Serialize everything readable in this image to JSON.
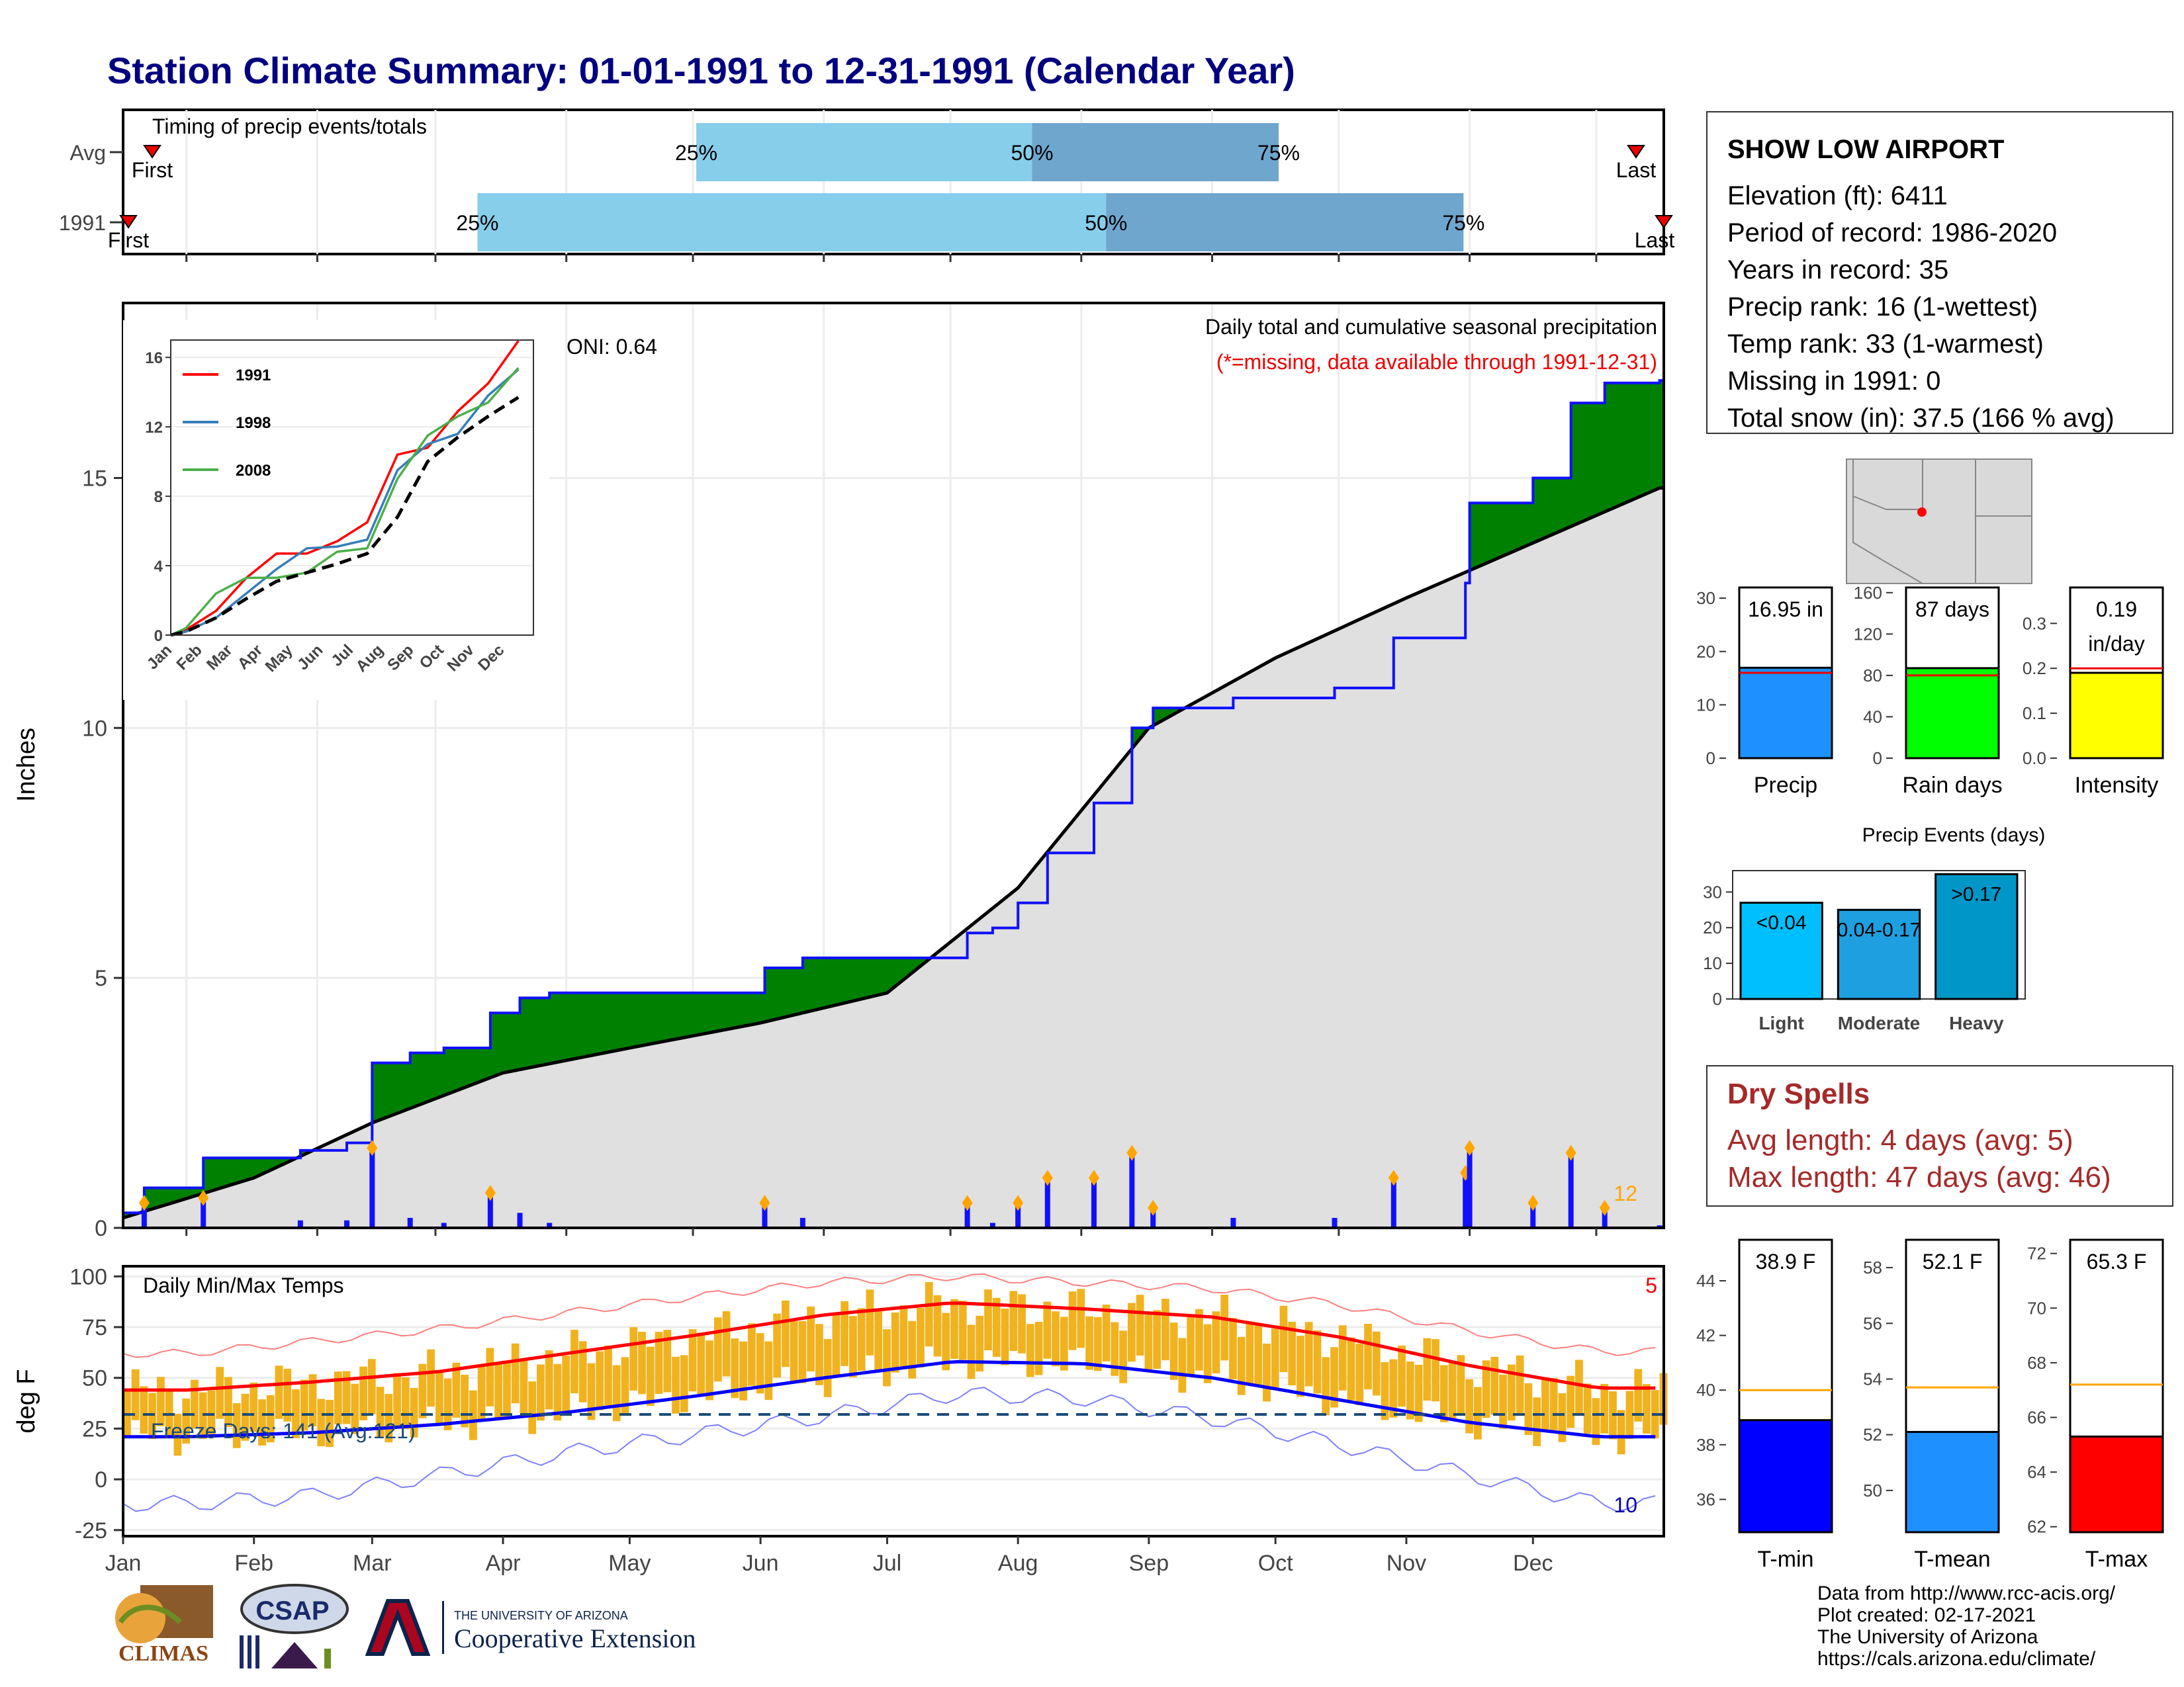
{
  "title": "Station Climate Summary: 01-01-1991 to 12-31-1991 (Calendar Year)",
  "timing": {
    "label": "Timing of precip events/totals",
    "rows": [
      {
        "name": "Avg",
        "first": 0.0,
        "p25": 0.372,
        "p50": 0.59,
        "p75": 0.75,
        "last": 0.985
      },
      {
        "name": "1991",
        "first": 0.0,
        "p25": 0.23,
        "p50": 0.638,
        "p75": 0.87,
        "last": 1.0
      }
    ],
    "first_label": "First",
    "last_label": "Last",
    "pct_labels": [
      "25%",
      "50%",
      "75%"
    ],
    "colors": {
      "q1": "#87ceeb",
      "q2": "#6ea6cd"
    }
  },
  "precip_panel": {
    "ylabel": "Inches",
    "ylim": [
      0,
      18.5
    ],
    "yticks": [
      0,
      5,
      10,
      15
    ],
    "oni_label": "ONI: 0.64",
    "caption": "Daily total and cumulative seasonal precipitation",
    "missing_note": "(*=missing, data available through 1991-12-31)",
    "corner_count": "12",
    "colors": {
      "above": "#008000",
      "below": "#8b5a00",
      "normal_fill": "#e0e0e0",
      "cum_line": "#1010ff",
      "bars": "#1010ff",
      "marker": "#ffa500"
    }
  },
  "chart_data": [
    {
      "type": "area",
      "title": "Daily total and cumulative seasonal precipitation",
      "ylabel": "Inches",
      "ylim": [
        0,
        18.5
      ],
      "series": [
        {
          "name": "1991",
          "x": [
            "Jan 1",
            "Jan 6",
            "Jan 20",
            "Feb 1",
            "Feb 12",
            "Feb 23",
            "Mar 1",
            "Mar 10",
            "Mar 18",
            "Mar 29",
            "Apr 5",
            "Apr 12",
            "May 1",
            "Jun 1",
            "Jun 2",
            "Jun 11",
            "Jul 1",
            "Jul 20",
            "Jul 26",
            "Aug 1",
            "Aug 8",
            "Aug 19",
            "Aug 28",
            "Sep 2",
            "Sep 21",
            "Oct 1",
            "Oct 15",
            "Oct 29",
            "Nov 15",
            "Nov 16",
            "Nov 28",
            "Dec 1",
            "Dec 10",
            "Dec 18",
            "Dec 31"
          ],
          "values": [
            0.3,
            0.8,
            1.4,
            1.4,
            1.55,
            1.7,
            3.3,
            3.5,
            3.6,
            4.3,
            4.6,
            4.7,
            4.7,
            4.7,
            5.2,
            5.4,
            5.4,
            5.9,
            6.0,
            6.5,
            7.5,
            8.5,
            10.0,
            10.4,
            10.6,
            10.6,
            10.8,
            11.8,
            12.9,
            14.5,
            14.5,
            15.0,
            16.5,
            16.9,
            16.95
          ]
        },
        {
          "name": "Avg",
          "x": [
            "Jan 1",
            "Feb 1",
            "Mar 1",
            "Apr 1",
            "May 1",
            "Jun 1",
            "Jul 1",
            "Aug 1",
            "Sep 1",
            "Oct 1",
            "Nov 1",
            "Dec 1",
            "Dec 31"
          ],
          "values": [
            0.2,
            1.0,
            2.1,
            3.1,
            3.6,
            4.1,
            4.7,
            6.8,
            10.0,
            11.4,
            12.6,
            13.7,
            14.8
          ]
        }
      ],
      "daily_bars_note": "Daily precipitation bars along the bottom of the panel"
    },
    {
      "type": "line",
      "title": "",
      "xlabel": "",
      "ylabel": "",
      "categories": [
        "Jan",
        "Feb",
        "Mar",
        "Apr",
        "May",
        "Jun",
        "Jul",
        "Aug",
        "Sep",
        "Oct",
        "Nov",
        "Dec"
      ],
      "ylim": [
        0,
        17
      ],
      "yticks": [
        0,
        4,
        8,
        12,
        16
      ],
      "series": [
        {
          "name": "1991",
          "color": "#ff0000",
          "values": [
            0.3,
            1.4,
            3.3,
            4.7,
            4.7,
            5.4,
            6.5,
            10.4,
            10.8,
            12.9,
            14.5,
            16.95
          ]
        },
        {
          "name": "1998",
          "color": "#377eb8",
          "values": [
            0.2,
            1.0,
            2.4,
            3.8,
            5.0,
            5.1,
            5.5,
            9.5,
            11.0,
            11.6,
            13.8,
            15.3
          ]
        },
        {
          "name": "2008",
          "color": "#4daf4a",
          "values": [
            0.4,
            2.4,
            3.3,
            3.3,
            3.6,
            4.8,
            5.0,
            9.0,
            11.5,
            12.6,
            13.4,
            15.4
          ]
        },
        {
          "name": "",
          "color": "#000000",
          "dashed": true,
          "values": [
            0.2,
            1.0,
            2.1,
            3.1,
            3.6,
            4.1,
            4.7,
            6.8,
            10.0,
            11.4,
            12.6,
            13.7
          ]
        }
      ]
    },
    {
      "type": "bar",
      "title": "",
      "categories": [
        "Precip"
      ],
      "values": [
        16.95
      ],
      "value_label": "16.95 in",
      "avg": 16.0,
      "ylim": [
        0,
        32
      ],
      "yticks": [
        0,
        10,
        20,
        30
      ],
      "color": "#1e90ff"
    },
    {
      "type": "bar",
      "title": "",
      "categories": [
        "Rain days"
      ],
      "values": [
        87
      ],
      "value_label": "87 days",
      "avg": 80,
      "ylim": [
        0,
        165
      ],
      "yticks": [
        0,
        40,
        80,
        120,
        160
      ],
      "color": "#00ff00"
    },
    {
      "type": "bar",
      "title": "",
      "categories": [
        "Intensity"
      ],
      "values": [
        0.19
      ],
      "value_label": [
        "0.19",
        "in/day"
      ],
      "avg": 0.2,
      "ylim": [
        0,
        0.38
      ],
      "yticks": [
        0.0,
        0.1,
        0.2,
        0.3
      ],
      "color": "#ffff00"
    },
    {
      "type": "bar",
      "title": "Precip Events (days)",
      "categories": [
        "Light",
        "Moderate",
        "Heavy"
      ],
      "values": [
        27,
        25,
        35
      ],
      "bar_labels": [
        "<0.04",
        "0.04-0.17",
        ">0.17"
      ],
      "ylim": [
        0,
        36
      ],
      "yticks": [
        0,
        10,
        20,
        30
      ],
      "colors": [
        "#00bfff",
        "#1ea0e0",
        "#0096c7"
      ]
    },
    {
      "type": "bar",
      "title": "Daily Min/Max Temps",
      "ylabel": "deg F",
      "ylim": [
        -28,
        105
      ],
      "yticks": [
        -25,
        0,
        25,
        50,
        75,
        100
      ],
      "months": [
        "Jan",
        "Feb",
        "Mar",
        "Apr",
        "May",
        "Jun",
        "Jul",
        "Aug",
        "Sep",
        "Oct",
        "Nov",
        "Dec"
      ],
      "freeze_label": "Freeze Days: 141 (Avg:121)",
      "freeze_line": 32,
      "corner_count_high": "5",
      "corner_count_low": "10",
      "series": [
        {
          "name": "avg max",
          "values_monthly": [
            44,
            48,
            53,
            62,
            71,
            81,
            87,
            84,
            80,
            70,
            56,
            45
          ]
        },
        {
          "name": "avg min",
          "values_monthly": [
            21,
            23,
            27,
            33,
            41,
            50,
            58,
            57,
            50,
            39,
            28,
            21
          ]
        },
        {
          "name": "record max",
          "values_monthly": [
            62,
            68,
            74,
            82,
            90,
            97,
            100,
            97,
            94,
            86,
            73,
            63
          ]
        },
        {
          "name": "record min",
          "values_monthly": [
            -12,
            -8,
            2,
            13,
            22,
            31,
            42,
            40,
            30,
            17,
            2,
            -12
          ]
        }
      ]
    },
    {
      "type": "bar",
      "title": "",
      "categories": [
        "T-min"
      ],
      "values": [
        38.9
      ],
      "value_label": "38.9 F",
      "avg": 40.0,
      "ylim": [
        34.8,
        45.5
      ],
      "yticks": [
        36,
        38,
        40,
        42,
        44
      ],
      "color": "#0000ff"
    },
    {
      "type": "bar",
      "title": "",
      "categories": [
        "T-mean"
      ],
      "values": [
        52.1
      ],
      "value_label": "52.1 F",
      "avg": 53.7,
      "ylim": [
        48.5,
        59.0
      ],
      "yticks": [
        50,
        52,
        54,
        56,
        58
      ],
      "color": "#1e90ff"
    },
    {
      "type": "bar",
      "title": "",
      "categories": [
        "T-max"
      ],
      "values": [
        65.3
      ],
      "value_label": "65.3 F",
      "avg": 67.2,
      "ylim": [
        61.8,
        72.5
      ],
      "yticks": [
        62,
        64,
        66,
        68,
        70,
        72
      ],
      "color": "#ff0000"
    }
  ],
  "months": [
    "Jan",
    "Feb",
    "Mar",
    "Apr",
    "May",
    "Jun",
    "Jul",
    "Aug",
    "Sep",
    "Oct",
    "Nov",
    "Dec"
  ],
  "station": {
    "name": "SHOW LOW AIRPORT",
    "lines": [
      "Elevation (ft): 6411",
      "Period of record: 1986-2020",
      "Years in record: 35",
      "Precip rank: 16 (1-wettest)",
      "Temp rank: 33 (1-warmest)",
      "Missing in 1991: 0",
      "Total snow (in): 37.5 (166 % avg)"
    ]
  },
  "dry_spells": {
    "title": "Dry Spells",
    "avg_length": "Avg length: 4 days (avg: 5)",
    "max_length": "Max length: 47 days (avg: 46)"
  },
  "footer": {
    "lines": [
      "Data from http://www.rcc-acis.org/",
      "Plot created: 02-17-2021",
      "The University of Arizona",
      "https://cals.arizona.edu/climate/"
    ],
    "logos": {
      "climas": "CLIMAS",
      "csap": "CSAP",
      "ua_small": "THE UNIVERSITY OF ARIZONA",
      "ua_big": "Cooperative Extension"
    }
  }
}
